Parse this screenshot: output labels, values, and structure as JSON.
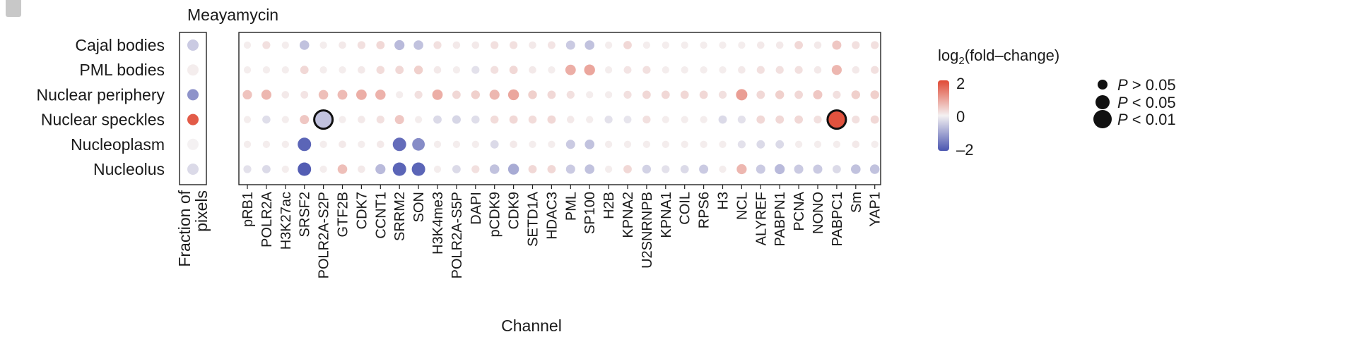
{
  "chart_data": {
    "type": "dot-matrix",
    "title": "Meayamycin",
    "xlabel": "Channel",
    "rows": [
      "Cajal bodies",
      "PML bodies",
      "Nuclear periphery",
      "Nuclear speckles",
      "Nucleoplasm",
      "Nucleolus"
    ],
    "fraction_panel_label": "Fraction of pixels",
    "fraction_values": [
      -0.5,
      0.05,
      -1.2,
      1.8,
      0.0,
      -0.3
    ],
    "columns": [
      "pRB1",
      "POLR2A",
      "H3K27ac",
      "SRSF2",
      "POLR2A-S2P",
      "GTF2B",
      "CDK7",
      "CCNT1",
      "SRRM2",
      "SON",
      "H3K4me3",
      "POLR2A-S5P",
      "DAPI",
      "pCDK9",
      "CDK9",
      "SETD1A",
      "HDAC3",
      "PML",
      "SP100",
      "H2B",
      "KPNA2",
      "U2SNRNPB",
      "KPNA1",
      "COIL",
      "RPS6",
      "H3",
      "NCL",
      "ALYREF",
      "PABPN1",
      "PCNA",
      "NONO",
      "PABPC1",
      "Sm",
      "YAP1"
    ],
    "values": [
      [
        0.05,
        0.2,
        0.05,
        -0.6,
        0.05,
        0.1,
        0.2,
        0.3,
        -0.7,
        -0.6,
        0.2,
        0.1,
        0.1,
        0.2,
        0.2,
        0.1,
        0.15,
        -0.5,
        -0.6,
        0.05,
        0.3,
        0.05,
        0.05,
        0.05,
        0.05,
        0.05,
        0.05,
        0.1,
        0.1,
        0.3,
        0.1,
        0.5,
        0.2,
        0.2
      ],
      [
        0.05,
        0.05,
        0.05,
        0.3,
        0.05,
        0.05,
        0.1,
        0.25,
        0.3,
        0.4,
        0.1,
        0.05,
        -0.2,
        0.2,
        0.3,
        0.1,
        0.05,
        0.8,
        0.9,
        0.05,
        0.15,
        0.2,
        0.05,
        0.05,
        0.05,
        0.05,
        0.1,
        0.2,
        0.2,
        0.2,
        0.1,
        0.7,
        0.1,
        0.2
      ],
      [
        0.55,
        0.7,
        0.1,
        0.15,
        0.6,
        0.65,
        0.8,
        0.75,
        0.05,
        0.2,
        0.8,
        0.3,
        0.4,
        0.7,
        0.9,
        0.4,
        0.3,
        0.2,
        0.05,
        0.05,
        0.2,
        0.3,
        0.3,
        0.3,
        0.3,
        0.2,
        1.0,
        0.3,
        0.4,
        0.3,
        0.5,
        0.2,
        0.4,
        0.4
      ],
      [
        0.05,
        -0.25,
        0.05,
        0.5,
        -0.6,
        0.05,
        0.1,
        0.2,
        0.5,
        0.05,
        -0.3,
        -0.35,
        -0.25,
        0.25,
        0.3,
        0.25,
        0.3,
        0.1,
        0.05,
        -0.2,
        -0.15,
        0.2,
        0.05,
        0.05,
        0.05,
        -0.3,
        -0.2,
        0.3,
        0.3,
        0.3,
        0.2,
        1.9,
        0.2,
        0.3
      ],
      [
        0.05,
        0.05,
        0.05,
        -1.8,
        0.05,
        0.1,
        0.05,
        0.1,
        -1.7,
        -1.3,
        0.05,
        0.05,
        0.05,
        -0.3,
        0.1,
        0.05,
        0.05,
        -0.5,
        -0.6,
        0.05,
        0.05,
        0.05,
        0.05,
        0.05,
        0.05,
        0.05,
        -0.2,
        -0.3,
        -0.3,
        0.05,
        0.05,
        0.05,
        0.1,
        0.05
      ],
      [
        -0.2,
        -0.3,
        0.05,
        -1.9,
        0.05,
        0.6,
        0.1,
        -0.7,
        -1.8,
        -1.8,
        0.05,
        -0.3,
        0.2,
        -0.6,
        -0.9,
        0.3,
        0.3,
        -0.5,
        -0.6,
        0.05,
        0.3,
        -0.4,
        -0.2,
        -0.3,
        -0.5,
        0.05,
        0.7,
        -0.5,
        -0.7,
        -0.5,
        -0.5,
        -0.3,
        -0.6,
        -0.6
      ]
    ],
    "significance": {
      "p_lt_001": [
        [
          3,
          4
        ],
        [
          3,
          31
        ]
      ]
    },
    "color_scale": {
      "label_prefix": "log",
      "label_subscript": "2",
      "label_suffix": "(fold–change)",
      "ticks": [
        "2",
        "0",
        "–2"
      ],
      "range": [
        -2,
        2
      ],
      "colors": {
        "low": "#4a55b0",
        "mid": "#f4f1f2",
        "high": "#e04a35"
      }
    },
    "size_legend": [
      {
        "prefix": "P",
        "text": " > 0.05"
      },
      {
        "prefix": "P",
        "text": " < 0.05"
      },
      {
        "prefix": "P",
        "text": " < 0.01"
      }
    ]
  }
}
